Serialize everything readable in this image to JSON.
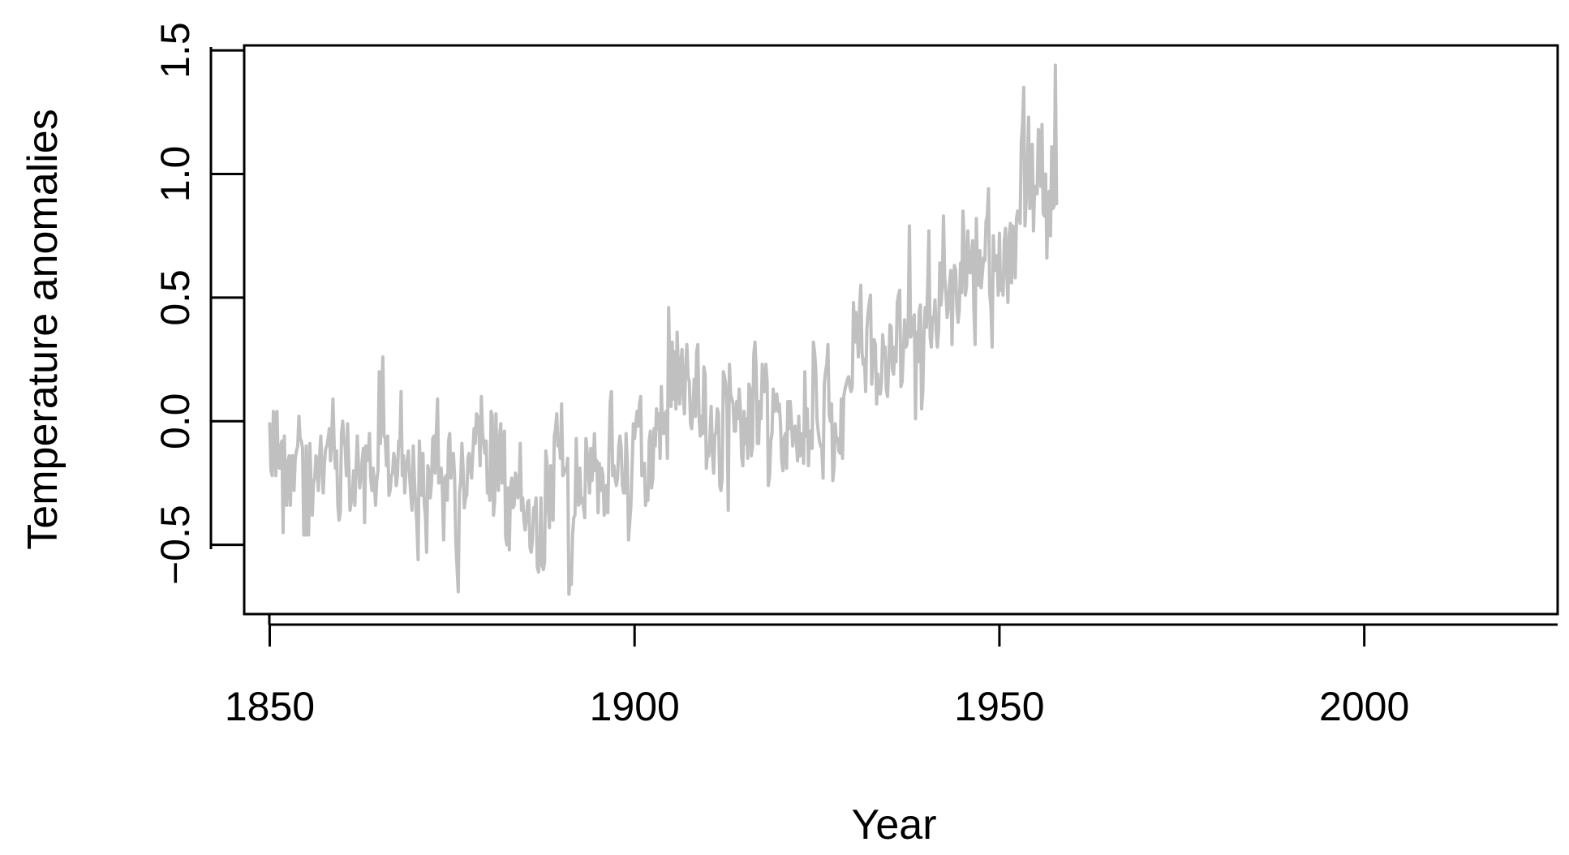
{
  "chart_data": {
    "type": "line",
    "title": "",
    "xlabel": "Year",
    "ylabel": "Temperature anomalies",
    "xlim": [
      1846.5,
      2026.5
    ],
    "ylim": [
      -0.78,
      1.52
    ],
    "x_ticks": [
      1850,
      1900,
      1950,
      2000
    ],
    "x_tick_labels": [
      "1850",
      "1900",
      "1950",
      "2000"
    ],
    "y_ticks": [
      -0.5,
      0.0,
      0.5,
      1.0,
      1.5
    ],
    "y_tick_labels": [
      "−0.5",
      "0.0",
      "0.5",
      "1.0",
      "1.5"
    ],
    "grid": false,
    "legend": "none",
    "line_color": "#c0c0c0",
    "sample_points_per_year": 6,
    "series": [
      {
        "values": [
          -0.01,
          -0.2,
          -0.22,
          0.04,
          0.03,
          -0.22,
          0.04,
          -0.18,
          -0.19,
          -0.1,
          -0.08,
          -0.45,
          -0.06,
          -0.3,
          -0.34,
          -0.16,
          -0.14,
          -0.34,
          -0.14,
          -0.14,
          -0.28,
          -0.15,
          -0.12,
          -0.1,
          0.02,
          -0.07,
          -0.08,
          -0.11,
          -0.46,
          -0.46,
          -0.1,
          -0.46,
          -0.46,
          -0.09,
          -0.25,
          -0.38,
          -0.25,
          -0.23,
          -0.14,
          -0.17,
          -0.28,
          -0.14,
          -0.06,
          -0.2,
          -0.29,
          -0.17,
          -0.11,
          -0.1,
          -0.07,
          -0.03,
          -0.16,
          -0.05,
          0.09,
          -0.1,
          -0.19,
          -0.12,
          -0.34,
          -0.4,
          -0.37,
          -0.05,
          0.0,
          -0.08,
          -0.1,
          -0.22,
          -0.01,
          -0.17,
          -0.36,
          -0.33,
          -0.3,
          -0.2,
          -0.34,
          -0.19,
          -0.06,
          -0.18,
          -0.27,
          -0.22,
          -0.16,
          -0.11,
          -0.41,
          -0.1,
          -0.16,
          -0.14,
          -0.05,
          -0.23,
          -0.28,
          -0.19,
          -0.25,
          -0.34,
          -0.24,
          -0.2,
          0.2,
          -0.09,
          0.09,
          0.26,
          -0.06,
          -0.07,
          -0.18,
          -0.06,
          -0.3,
          -0.28,
          -0.22,
          -0.21,
          -0.13,
          -0.16,
          -0.26,
          -0.22,
          -0.08,
          -0.1,
          0.12,
          -0.22,
          -0.14,
          -0.29,
          -0.2,
          -0.16,
          -0.12,
          -0.22,
          -0.3,
          -0.36,
          -0.1,
          -0.24,
          -0.33,
          -0.42,
          -0.56,
          -0.08,
          -0.18,
          -0.3,
          -0.13,
          -0.33,
          -0.38,
          -0.53,
          -0.18,
          -0.21,
          -0.31,
          -0.25,
          -0.07,
          -0.06,
          -0.21,
          -0.04,
          0.09,
          -0.25,
          -0.2,
          -0.19,
          -0.28,
          -0.48,
          -0.23,
          -0.22,
          -0.32,
          -0.08,
          -0.05,
          -0.23,
          -0.14,
          -0.13,
          -0.22,
          -0.49,
          -0.59,
          -0.69,
          -0.29,
          -0.24,
          -0.09,
          -0.19,
          -0.35,
          -0.31,
          -0.3,
          -0.15,
          -0.13,
          -0.19,
          -0.23,
          -0.13,
          -0.03,
          -0.09,
          0.03,
          0.02,
          -0.04,
          -0.18,
          0.1,
          -0.05,
          -0.09,
          -0.13,
          -0.08,
          -0.29,
          -0.27,
          -0.32,
          0.04,
          0.02,
          -0.38,
          -0.32,
          0.03,
          -0.19,
          -0.28,
          -0.06,
          -0.01,
          -0.25,
          -0.11,
          -0.04,
          -0.47,
          -0.5,
          -0.27,
          -0.52,
          -0.27,
          -0.23,
          -0.35,
          -0.34,
          -0.21,
          -0.23,
          -0.31,
          -0.27,
          -0.09,
          -0.36,
          -0.31,
          -0.4,
          -0.44,
          -0.4,
          -0.33,
          -0.32,
          -0.51,
          -0.53,
          -0.48,
          -0.35,
          -0.36,
          -0.31,
          -0.59,
          -0.61,
          -0.55,
          -0.31,
          -0.58,
          -0.6,
          -0.57,
          -0.12,
          -0.17,
          -0.35,
          -0.43,
          -0.18,
          -0.38,
          -0.4,
          -0.06,
          -0.03,
          0.03,
          -0.1,
          -0.08,
          -0.15,
          0.07,
          -0.22,
          -0.21,
          -0.19,
          -0.2,
          -0.15,
          -0.7,
          -0.64,
          -0.66,
          -0.46,
          -0.39,
          -0.38,
          -0.07,
          -0.27,
          -0.34,
          -0.19,
          -0.33,
          -0.31,
          -0.35,
          -0.39,
          -0.07,
          -0.12,
          -0.21,
          -0.29,
          -0.11,
          -0.24,
          -0.17,
          -0.05,
          -0.2,
          -0.16,
          -0.37,
          -0.17,
          -0.28,
          -0.19,
          -0.22,
          -0.38,
          -0.36,
          -0.26,
          -0.37,
          -0.12,
          0.08,
          0.12,
          -0.22,
          -0.18,
          -0.23,
          -0.26,
          -0.23,
          -0.1,
          -0.06,
          -0.11,
          -0.26,
          -0.29,
          -0.29,
          -0.05,
          -0.16,
          -0.48,
          -0.41,
          -0.34,
          -0.18,
          -0.01,
          -0.07,
          -0.01,
          0.04,
          -0.02,
          0.07,
          0.1,
          -0.22,
          -0.21,
          -0.17,
          -0.34,
          -0.27,
          -0.32,
          -0.08,
          -0.04,
          -0.27,
          -0.23,
          -0.03,
          -0.1,
          0.05,
          -0.03,
          0.03,
          -0.15,
          0.14,
          -0.04,
          -0.05,
          0.03,
          0.04,
          -0.15,
          0.46,
          0.21,
          0.06,
          0.32,
          0.09,
          0.28,
          0.05,
          0.36,
          0.21,
          0.07,
          0.24,
          0.29,
          0.1,
          0.03,
          0.22,
          0.31,
          0.18,
          0.16,
          -0.01,
          -0.03,
          0.05,
          0.17,
          0.02,
          0.28,
          0.31,
          0.02,
          -0.06,
          0.02,
          -0.05,
          0.22,
          0.19,
          -0.19,
          -0.13,
          -0.14,
          -0.06,
          0.06,
          -0.13,
          -0.21,
          -0.06,
          -0.04,
          0.05,
          0.03,
          -0.26,
          -0.28,
          -0.23,
          0.2,
          0.18,
          0.15,
          0.05,
          -0.36,
          0.23,
          0.11,
          0.09,
          0.07,
          -0.04,
          -0.04,
          0.08,
          0.01,
          0.13,
          0.05,
          -0.14,
          -0.18,
          0.04,
          -0.09,
          0.01,
          -0.15,
          0.15,
          0.13,
          -0.14,
          -0.1,
          0.27,
          0.32,
          0.21,
          -0.09,
          -0.09,
          0.08,
          0.01,
          0.23,
          0.12,
          0.12,
          0.23,
          0.16,
          -0.26,
          -0.22,
          -0.08,
          -0.05,
          0.13,
          0.04,
          0.1,
          0.11,
          0.04,
          0.07,
          -0.01,
          -0.16,
          -0.2,
          -0.07,
          -0.05,
          -0.19,
          0.08,
          -0.03,
          0.08,
          0.0,
          -0.1,
          -0.05,
          -0.02,
          -0.08,
          -0.16,
          0.02,
          -0.14,
          -0.09,
          -0.05,
          -0.17,
          0.2,
          -0.06,
          0.05,
          -0.18,
          -0.04,
          -0.1,
          -0.11,
          0.32,
          0.28,
          0.21,
          0.01,
          -0.04,
          -0.08,
          -0.1,
          -0.11,
          -0.23,
          0.15,
          0.2,
          0.23,
          0.31,
          0.03,
          0.0,
          0.07,
          -0.24,
          -0.19,
          -0.01,
          -0.08,
          -0.07,
          -0.12,
          -0.13,
          0.09,
          -0.15,
          0.1,
          0.13,
          0.15,
          0.17,
          0.18,
          0.14,
          0.12,
          0.14,
          0.48,
          0.32,
          0.44,
          0.37,
          0.26,
          0.46,
          0.55,
          0.28,
          0.23,
          0.25,
          0.12,
          0.37,
          0.44,
          0.48,
          0.51,
          0.15,
          0.25,
          0.33,
          0.31,
          0.07,
          0.19,
          0.13,
          0.11,
          0.16,
          0.35,
          0.28,
          0.3,
          0.13,
          0.1,
          0.23,
          0.39,
          0.38,
          0.21,
          0.19,
          0.3,
          0.24,
          0.48,
          0.51,
          0.53,
          0.14,
          0.16,
          0.28,
          0.41,
          0.3,
          0.31,
          0.41,
          0.79,
          0.34,
          0.36,
          0.41,
          0.43,
          0.01,
          0.36,
          0.24,
          0.44,
          0.47,
          0.05,
          0.12,
          0.36,
          0.46,
          0.38,
          0.55,
          0.77,
          0.34,
          0.3,
          0.42,
          0.41,
          0.49,
          0.36,
          0.3,
          0.37,
          0.64,
          0.47,
          0.55,
          0.83,
          0.58,
          0.52,
          0.42,
          0.46,
          0.56,
          0.61,
          0.31,
          0.55,
          0.63,
          0.61,
          0.46,
          0.4,
          0.45,
          0.64,
          0.52,
          0.85,
          0.73,
          0.51,
          0.55,
          0.77,
          0.64,
          0.6,
          0.67,
          0.73,
          0.46,
          0.31,
          0.82,
          0.6,
          0.55,
          0.69,
          0.54,
          0.6,
          0.66,
          0.65,
          0.81,
          0.83,
          0.94,
          0.52,
          0.46,
          0.3,
          0.75,
          0.61,
          0.66,
          0.67,
          0.51,
          0.76,
          0.53,
          0.57,
          0.51,
          0.73,
          0.78,
          0.6,
          0.48,
          0.75,
          0.8,
          0.56,
          0.79,
          0.77,
          0.58,
          0.82,
          0.85,
          0.84,
          0.8,
          1.13,
          1.2,
          1.35,
          0.79,
          0.89,
          1.03,
          1.23,
          0.86,
          0.91,
          1.12,
          0.77,
          0.95,
          0.92,
          0.92,
          1.18,
          1.16,
          0.95,
          1.2,
          0.84,
          0.83,
          1.0,
          0.66,
          0.89,
          0.93,
          0.75,
          1.11,
          0.86,
          0.87,
          1.44,
          0.88
        ]
      }
    ]
  }
}
